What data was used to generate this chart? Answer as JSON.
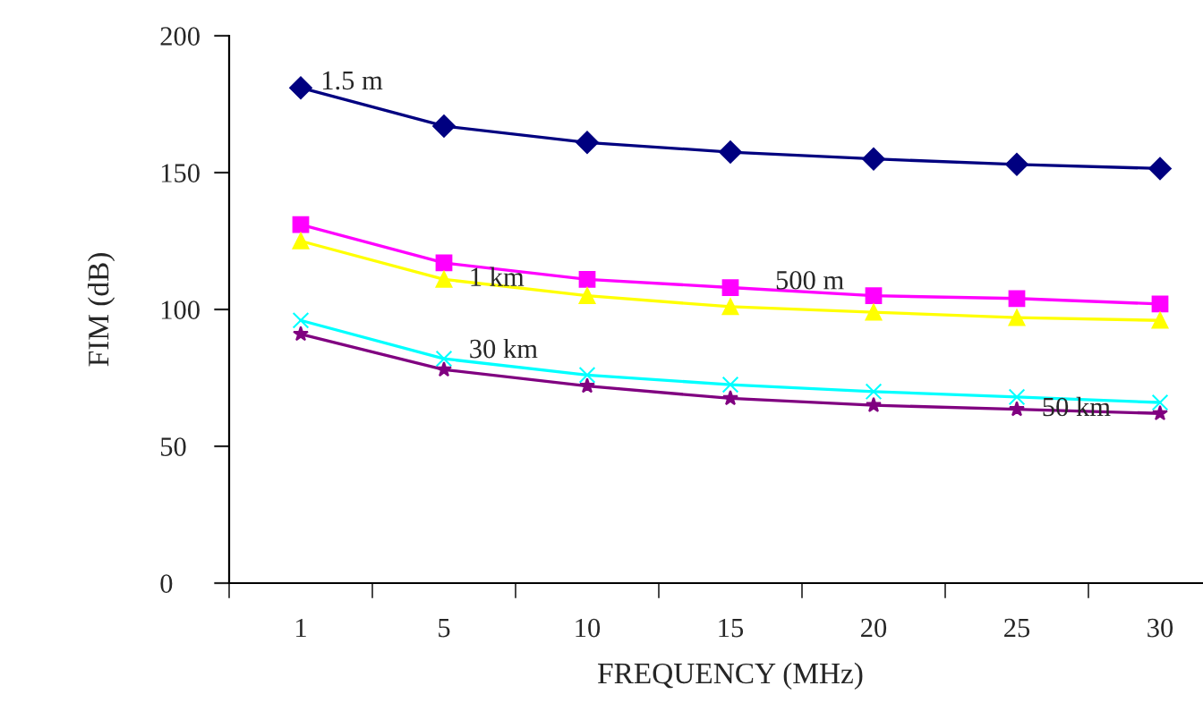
{
  "chart_data": {
    "type": "line",
    "xlabel": "FREQUENCY (MHz)",
    "ylabel": "FIM (dB)",
    "categories": [
      "1",
      "5",
      "10",
      "15",
      "20",
      "25",
      "30"
    ],
    "ylim": [
      0,
      200
    ],
    "yticks": [
      0,
      50,
      100,
      150,
      200
    ],
    "grid": false,
    "legend": false,
    "line_style": "solid",
    "series": [
      {
        "name": "1.5 m",
        "color": "#000080",
        "marker": "diamond",
        "values": [
          181,
          167,
          161,
          157.5,
          155,
          153,
          151.5
        ]
      },
      {
        "name": "500 m",
        "color": "#ff00ff",
        "marker": "square",
        "values": [
          131,
          117,
          111,
          108,
          105,
          104,
          102
        ]
      },
      {
        "name": "1 km",
        "color": "#ffff00",
        "marker": "triangle",
        "values": [
          125,
          111,
          105,
          101,
          99,
          97,
          96
        ]
      },
      {
        "name": "30 km",
        "color": "#00ffff",
        "marker": "cross",
        "values": [
          96,
          82,
          76,
          72.5,
          70,
          68,
          66
        ]
      },
      {
        "name": "50 km",
        "color": "#800080",
        "marker": "star",
        "values": [
          91,
          78,
          72,
          67.5,
          65,
          63.5,
          62
        ]
      }
    ]
  }
}
